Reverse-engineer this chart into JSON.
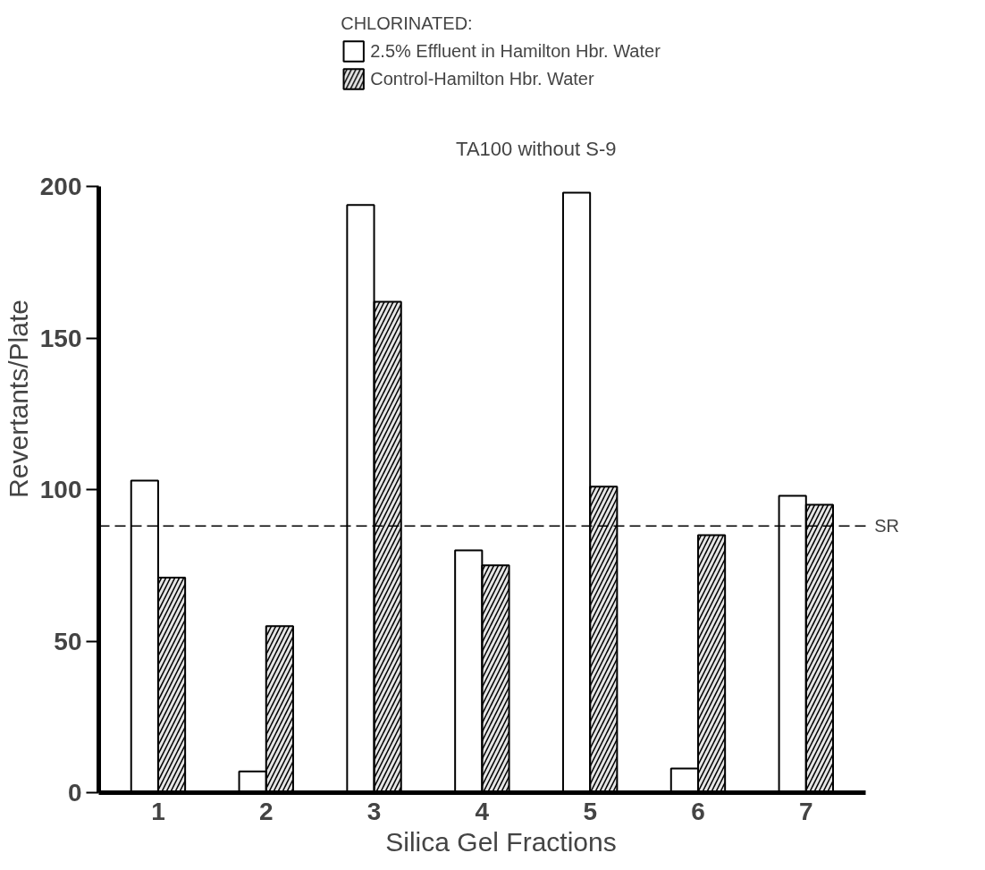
{
  "chart_data": {
    "type": "bar",
    "subtitle": "TA100 without S-9",
    "legend_title": "CHLORINATED:",
    "xlabel": "Silica Gel Fractions",
    "ylabel": "Revertants/Plate",
    "categories": [
      "1",
      "2",
      "3",
      "4",
      "5",
      "6",
      "7"
    ],
    "series": [
      {
        "name": "2.5% Effluent in Hamilton Hbr. Water",
        "color": "#ffffff",
        "values": [
          103,
          7,
          194,
          80,
          198,
          8,
          98
        ]
      },
      {
        "name": "Control-Hamilton Hbr. Water",
        "color": "#000000",
        "values": [
          71,
          55,
          162,
          75,
          101,
          85,
          95
        ]
      }
    ],
    "ylim": [
      0,
      200
    ],
    "yticks": [
      0,
      50,
      100,
      150,
      200
    ],
    "ref_lines": [
      {
        "axis": "y",
        "value": 88,
        "label": "SR",
        "line_style": "dashed"
      }
    ],
    "legend": "top",
    "grid": false
  }
}
